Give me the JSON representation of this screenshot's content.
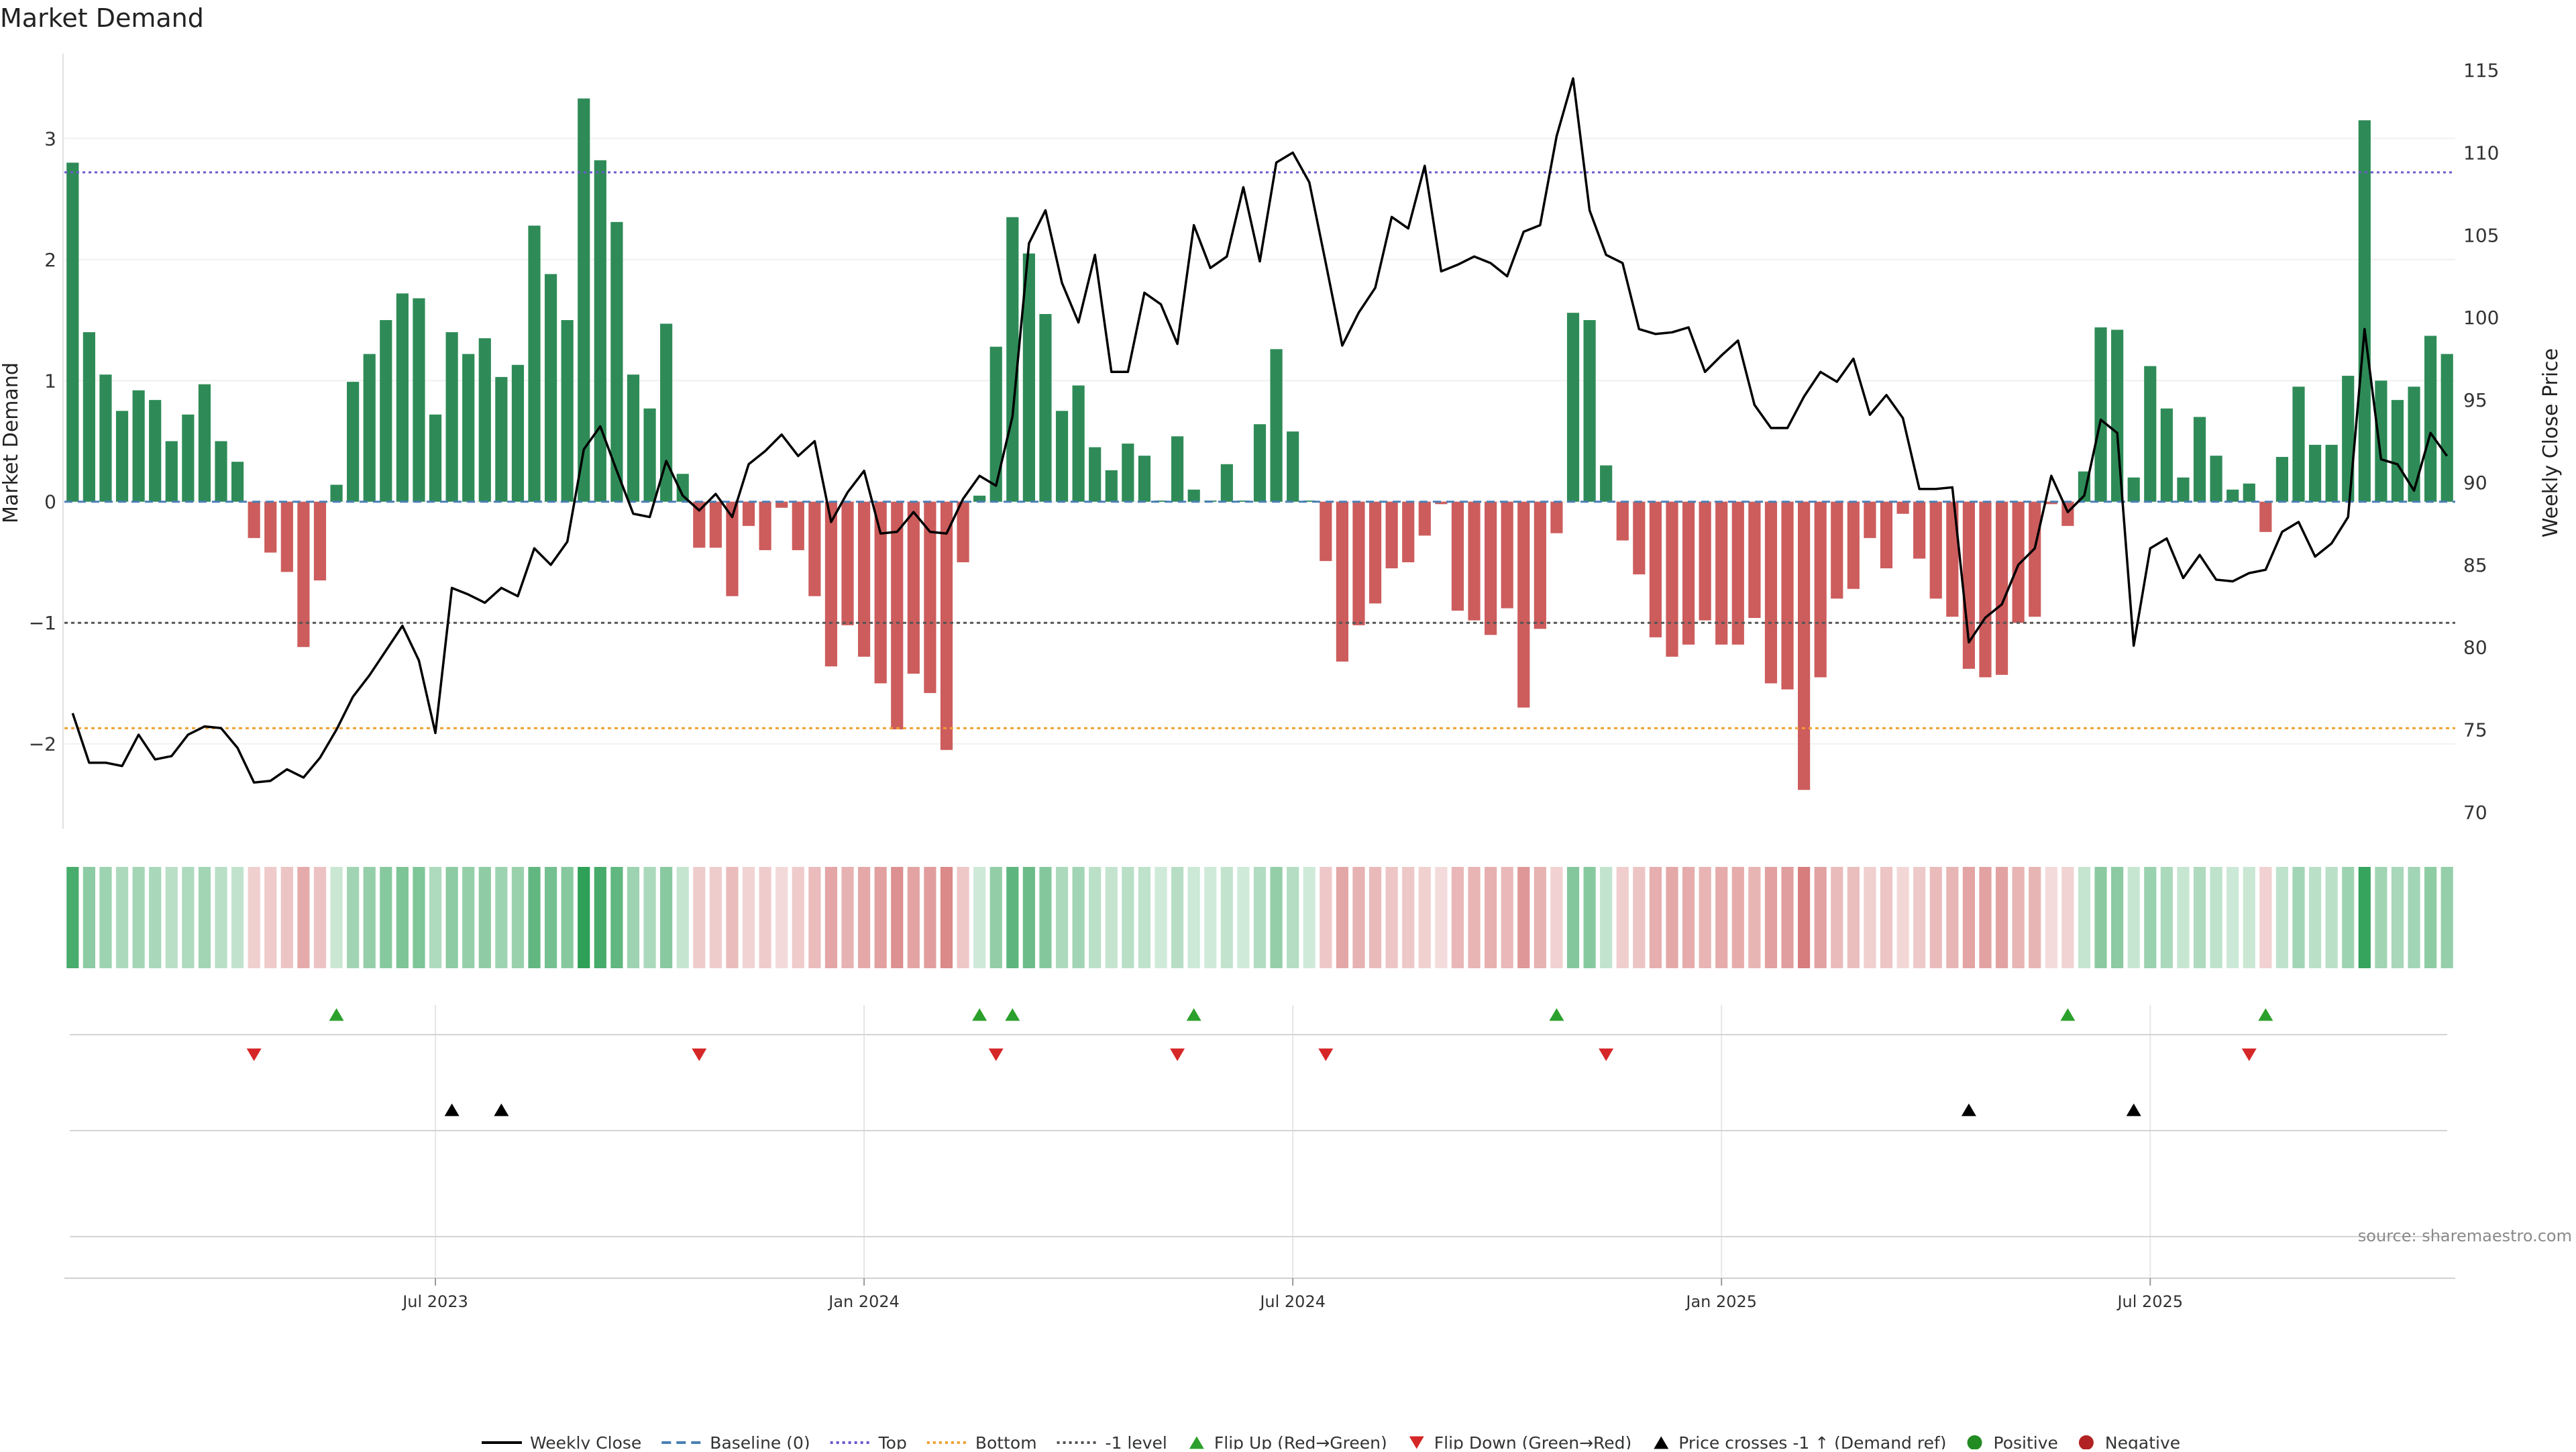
{
  "title": "Market Demand",
  "source": "source: sharemaestro.com",
  "axes": {
    "left_label": "Market Demand",
    "right_label": "Weekly Close Price",
    "left_ylim": [
      -2.7,
      3.7
    ],
    "right_ylim": [
      69,
      116
    ],
    "left_ticks": [
      -2,
      -1,
      0,
      1,
      2,
      3
    ],
    "left_tick_labels": [
      "−2",
      "−1",
      "0",
      "1",
      "2",
      "3"
    ],
    "right_ticks": [
      70,
      75,
      80,
      85,
      90,
      95,
      100,
      105,
      110,
      115
    ],
    "right_tick_labels": [
      "70",
      "75",
      "80",
      "85",
      "90",
      "95",
      "100",
      "105",
      "110",
      "115"
    ],
    "x_tick_labels": [
      "Jul 2023",
      "Jan 2024",
      "Jul 2024",
      "Jan 2025",
      "Jul 2025"
    ],
    "x_tick_weeks": [
      22,
      48,
      74,
      100,
      126
    ]
  },
  "legend": [
    {
      "label": "Weekly Close",
      "kind": "line",
      "color": "#000000"
    },
    {
      "label": "Baseline (0)",
      "kind": "dash",
      "color": "#4a7fb5"
    },
    {
      "label": "Top",
      "kind": "dot",
      "color": "#6a5acd"
    },
    {
      "label": "Bottom",
      "kind": "dot",
      "color": "#f0a030"
    },
    {
      "label": "-1 level",
      "kind": "dot",
      "color": "#555555"
    },
    {
      "label": "Flip Up (Red→Green)",
      "kind": "tri-up",
      "color": "#2ca02c"
    },
    {
      "label": "Flip Down (Green→Red)",
      "kind": "tri-down",
      "color": "#d62728"
    },
    {
      "label": "Price crosses -1 ↑ (Demand ref)",
      "kind": "tri-up",
      "color": "#000000"
    },
    {
      "label": "Positive",
      "kind": "circle",
      "color": "#228b22"
    },
    {
      "label": "Negative",
      "kind": "circle",
      "color": "#b22222"
    }
  ],
  "colors": {
    "positive": "#2e8b57",
    "negative": "#cd5c5c",
    "price": "#000000",
    "baseline": "#4a7fb5",
    "top": "#6a5acd",
    "bottom": "#f0a030",
    "minus_one": "#555555",
    "flip_up": "#2ca02c",
    "flip_down": "#d62728",
    "cross": "#000000"
  },
  "chart_data": {
    "type": "bar",
    "title": "Market Demand",
    "ylabel": "Market Demand",
    "y2label": "Weekly Close Price",
    "ylim": [
      -2.7,
      3.7
    ],
    "y2lim": [
      69,
      116
    ],
    "reference_lines": {
      "top": 2.72,
      "bottom": -1.87,
      "minus_one": -1.0,
      "baseline": 0
    },
    "demand": [
      2.8,
      1.4,
      1.05,
      0.75,
      0.92,
      0.84,
      0.5,
      0.72,
      0.97,
      0.5,
      0.33,
      -0.3,
      -0.42,
      -0.58,
      -1.2,
      -0.65,
      0.14,
      0.99,
      1.22,
      1.5,
      1.72,
      1.68,
      0.72,
      1.4,
      1.22,
      1.35,
      1.03,
      1.13,
      2.28,
      1.88,
      1.5,
      3.33,
      2.82,
      2.31,
      1.05,
      0.77,
      1.47,
      0.23,
      -0.38,
      -0.38,
      -0.78,
      -0.2,
      -0.4,
      -0.05,
      -0.4,
      -0.78,
      -1.36,
      -1.02,
      -1.28,
      -1.5,
      -1.88,
      -1.42,
      -1.58,
      -2.05,
      -0.5,
      0.05,
      1.28,
      2.35,
      2.05,
      1.55,
      0.75,
      0.96,
      0.45,
      0.26,
      0.48,
      0.38,
      0.01,
      0.54,
      0.1,
      0.01,
      0.31,
      0.01,
      0.64,
      1.26,
      0.58,
      0.01,
      -0.49,
      -1.32,
      -1.02,
      -0.84,
      -0.55,
      -0.5,
      -0.28,
      -0.02,
      -0.9,
      -0.98,
      -1.1,
      -0.88,
      -1.7,
      -1.05,
      -0.26,
      1.56,
      1.5,
      0.3,
      -0.32,
      -0.6,
      -1.12,
      -1.28,
      -1.18,
      -0.98,
      -1.18,
      -1.18,
      -0.96,
      -1.5,
      -1.55,
      -2.38,
      -1.45,
      -0.8,
      -0.72,
      -0.3,
      -0.55,
      -0.1,
      -0.47,
      -0.8,
      -0.95,
      -1.38,
      -1.45,
      -1.43,
      -1.0,
      -0.95,
      -0.02,
      -0.2,
      0.25,
      1.44,
      1.42,
      0.2,
      1.12,
      0.77,
      0.2,
      0.7,
      0.38,
      0.1,
      0.15,
      -0.25,
      0.37,
      0.95,
      0.47,
      0.47,
      1.04,
      3.15,
      1.0,
      0.84,
      0.95,
      1.37,
      1.22
    ],
    "price": [
      76.0,
      73.0,
      73.0,
      72.8,
      74.7,
      73.2,
      73.4,
      74.7,
      75.2,
      75.1,
      73.9,
      71.8,
      71.9,
      72.6,
      72.1,
      73.3,
      75.0,
      77.0,
      78.3,
      79.8,
      81.3,
      79.2,
      74.8,
      83.6,
      83.2,
      82.7,
      83.6,
      83.1,
      86.0,
      85.0,
      86.4,
      92.0,
      93.4,
      90.7,
      88.1,
      87.9,
      91.3,
      89.2,
      88.3,
      89.3,
      87.9,
      91.1,
      91.9,
      92.9,
      91.6,
      92.5,
      87.6,
      89.4,
      90.7,
      86.9,
      87.0,
      88.2,
      87.0,
      86.9,
      89.0,
      90.4,
      89.8,
      94.0,
      104.5,
      106.5,
      102.1,
      99.7,
      103.8,
      96.7,
      96.7,
      101.5,
      100.8,
      98.4,
      105.6,
      103.0,
      103.7,
      107.9,
      103.4,
      109.4,
      110.0,
      108.2,
      103.3,
      98.3,
      100.3,
      101.8,
      106.1,
      105.4,
      109.2,
      102.8,
      103.2,
      103.7,
      103.3,
      102.5,
      105.2,
      105.6,
      111.0,
      114.5,
      106.5,
      103.8,
      103.3,
      99.3,
      99.0,
      99.1,
      99.4,
      96.7,
      97.7,
      98.6,
      94.7,
      93.3,
      93.3,
      95.2,
      96.7,
      96.1,
      97.5,
      94.1,
      95.3,
      93.9,
      89.6,
      89.6,
      89.7,
      80.3,
      81.8,
      82.6,
      85.0,
      86.0,
      90.4,
      88.2,
      89.2,
      93.8,
      93.0,
      80.1,
      86.0,
      86.6,
      84.2,
      85.6,
      84.1,
      84.0,
      84.5,
      84.7,
      87.0,
      87.6,
      85.5,
      86.3,
      87.9,
      99.3,
      91.4,
      91.1,
      89.5,
      93.0,
      91.6
    ],
    "flip_up_weeks": [
      16,
      55,
      57,
      68,
      90,
      121,
      133
    ],
    "flip_down_weeks": [
      11,
      38,
      56,
      67,
      76,
      93,
      132
    ],
    "price_cross_weeks": [
      23,
      26,
      115,
      125
    ],
    "x_tick_labels": [
      "Jul 2023",
      "Jan 2024",
      "Jul 2024",
      "Jan 2025",
      "Jul 2025"
    ]
  }
}
